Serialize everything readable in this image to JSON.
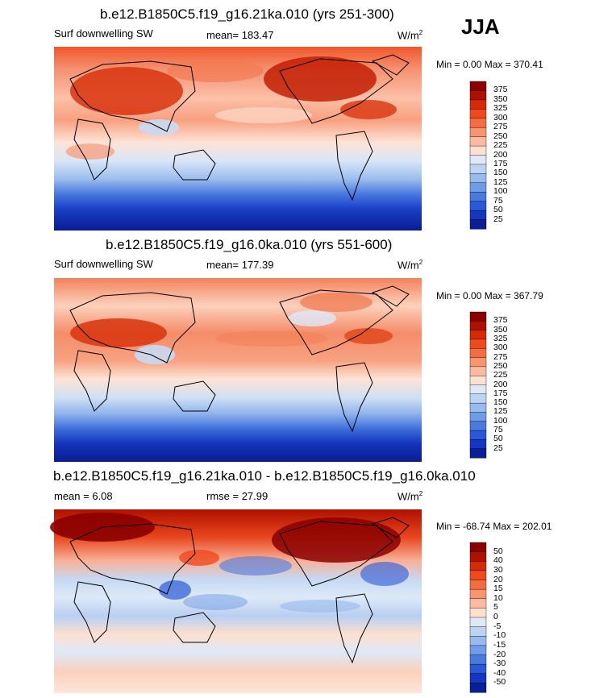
{
  "season": "JJA",
  "panels": [
    {
      "title": "b.e12.B1850C5.f19_g16.21ka.010 (yrs 251-300)",
      "left_label": "Surf downwelling SW",
      "center_label": "mean= 183.47",
      "units_base": "W/m",
      "units_exp": "2",
      "minmax": "Min =   0.00 Max = 370.41",
      "colorbar": {
        "labels": [
          "375",
          "350",
          "325",
          "300",
          "275",
          "250",
          "225",
          "200",
          "175",
          "150",
          "125",
          "100",
          "75",
          "50",
          "25"
        ],
        "colors": [
          "#8a0000",
          "#b01000",
          "#d42a08",
          "#ee4a1e",
          "#f46d40",
          "#f99470",
          "#fcbaa0",
          "#fde0d0",
          "#dde9f7",
          "#bcd3f2",
          "#98baed",
          "#6f9ce6",
          "#4a7ae0",
          "#2a58d6",
          "#1436c0",
          "#0a1e96"
        ]
      }
    },
    {
      "title": "b.e12.B1850C5.f19_g16.0ka.010 (yrs 551-600)",
      "left_label": "Surf downwelling SW",
      "center_label": "mean= 177.39",
      "units_base": "W/m",
      "units_exp": "2",
      "minmax": "Min =   0.00 Max = 367.79",
      "colorbar": {
        "labels": [
          "375",
          "350",
          "325",
          "300",
          "275",
          "250",
          "225",
          "200",
          "175",
          "150",
          "125",
          "100",
          "75",
          "50",
          "25"
        ],
        "colors": [
          "#8a0000",
          "#b01000",
          "#d42a08",
          "#ee4a1e",
          "#f46d40",
          "#f99470",
          "#fcbaa0",
          "#fde0d0",
          "#dde9f7",
          "#bcd3f2",
          "#98baed",
          "#6f9ce6",
          "#4a7ae0",
          "#2a58d6",
          "#1436c0",
          "#0a1e96"
        ]
      }
    },
    {
      "title": "b.e12.B1850C5.f19_g16.21ka.010 - b.e12.B1850C5.f19_g16.0ka.010",
      "left_label": "mean =   6.08",
      "center_label": "rmse =  27.99",
      "units_base": "W/m",
      "units_exp": "2",
      "minmax": "Min = -68.74 Max = 202.01",
      "colorbar": {
        "labels": [
          "50",
          "40",
          "30",
          "20",
          "15",
          "10",
          "5",
          "0",
          "-5",
          "-10",
          "-15",
          "-20",
          "-30",
          "-40",
          "-50"
        ],
        "colors": [
          "#8a0000",
          "#b01000",
          "#d42a08",
          "#ee4a1e",
          "#f46d40",
          "#f99470",
          "#fcbaa0",
          "#fde0d0",
          "#dde9f7",
          "#bcd3f2",
          "#98baed",
          "#6f9ce6",
          "#4a7ae0",
          "#2a58d6",
          "#1436c0",
          "#0a1e96"
        ]
      }
    }
  ]
}
